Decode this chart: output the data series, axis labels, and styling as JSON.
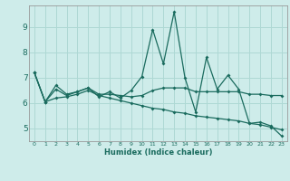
{
  "xlabel": "Humidex (Indice chaleur)",
  "background_color": "#ceecea",
  "grid_color": "#aed8d4",
  "line_color": "#1a6b5e",
  "xlim": [
    -0.5,
    23.5
  ],
  "ylim": [
    4.5,
    9.85
  ],
  "yticks": [
    5,
    6,
    7,
    8,
    9
  ],
  "xticks": [
    0,
    1,
    2,
    3,
    4,
    5,
    6,
    7,
    8,
    9,
    10,
    11,
    12,
    13,
    14,
    15,
    16,
    17,
    18,
    19,
    20,
    21,
    22,
    23
  ],
  "series1_x": [
    0,
    1,
    2,
    3,
    4,
    5,
    6,
    7,
    8,
    9,
    10,
    11,
    12,
    13,
    14,
    15,
    16,
    17,
    18,
    19,
    20,
    21,
    22,
    23
  ],
  "series1_y": [
    7.2,
    6.05,
    6.7,
    6.35,
    6.45,
    6.6,
    6.25,
    6.45,
    6.2,
    6.5,
    7.05,
    8.9,
    7.55,
    9.6,
    7.0,
    5.65,
    7.8,
    6.55,
    7.1,
    6.55,
    5.2,
    5.25,
    5.1,
    4.7
  ],
  "series2_x": [
    0,
    1,
    2,
    3,
    4,
    5,
    6,
    7,
    8,
    9,
    10,
    11,
    12,
    13,
    14,
    15,
    16,
    17,
    18,
    19,
    20,
    21,
    22,
    23
  ],
  "series2_y": [
    7.2,
    6.05,
    6.55,
    6.3,
    6.45,
    6.6,
    6.35,
    6.35,
    6.3,
    6.25,
    6.3,
    6.5,
    6.6,
    6.6,
    6.6,
    6.45,
    6.45,
    6.45,
    6.45,
    6.45,
    6.35,
    6.35,
    6.3,
    6.3
  ],
  "series3_x": [
    0,
    1,
    2,
    3,
    4,
    5,
    6,
    7,
    8,
    9,
    10,
    11,
    12,
    13,
    14,
    15,
    16,
    17,
    18,
    19,
    20,
    21,
    22,
    23
  ],
  "series3_y": [
    7.2,
    6.05,
    6.2,
    6.25,
    6.35,
    6.5,
    6.3,
    6.2,
    6.1,
    6.0,
    5.9,
    5.8,
    5.75,
    5.65,
    5.6,
    5.5,
    5.45,
    5.4,
    5.35,
    5.3,
    5.2,
    5.15,
    5.05,
    4.95
  ]
}
